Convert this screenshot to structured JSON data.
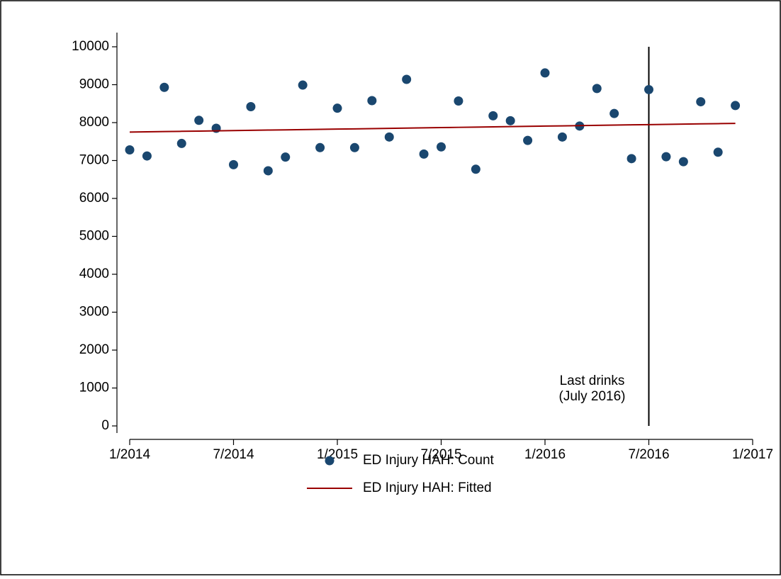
{
  "chart_data": {
    "type": "scatter",
    "x": [
      "1/2014",
      "2/2014",
      "3/2014",
      "4/2014",
      "5/2014",
      "6/2014",
      "7/2014",
      "8/2014",
      "9/2014",
      "10/2014",
      "11/2014",
      "12/2014",
      "1/2015",
      "2/2015",
      "3/2015",
      "4/2015",
      "5/2015",
      "6/2015",
      "7/2015",
      "8/2015",
      "9/2015",
      "10/2015",
      "11/2015",
      "12/2015",
      "1/2016",
      "2/2016",
      "3/2016",
      "4/2016",
      "5/2016",
      "6/2016",
      "7/2016",
      "8/2016",
      "9/2016",
      "10/2016",
      "11/2016",
      "12/2016"
    ],
    "series": [
      {
        "name": "ED Injury HAH: Count",
        "color": "#1a476f",
        "style": "markers",
        "values": [
          7280,
          7120,
          8930,
          7450,
          8060,
          7850,
          6890,
          8420,
          6730,
          7090,
          8990,
          7340,
          8380,
          7340,
          8580,
          7620,
          9140,
          7170,
          7360,
          8570,
          6770,
          8180,
          8050,
          7530,
          9310,
          7620,
          7910,
          8900,
          8240,
          7050,
          8870,
          7100,
          6970,
          8550,
          7220,
          8450
        ]
      },
      {
        "name": "ED Injury HAH: Fitted",
        "color": "#990000",
        "style": "line",
        "values": [
          7750,
          7757,
          7763,
          7770,
          7776,
          7783,
          7789,
          7796,
          7803,
          7809,
          7816,
          7822,
          7829,
          7835,
          7842,
          7849,
          7855,
          7862,
          7868,
          7875,
          7881,
          7888,
          7895,
          7901,
          7908,
          7914,
          7921,
          7927,
          7934,
          7941,
          7947,
          7954,
          7960,
          7967,
          7973,
          7980
        ]
      }
    ],
    "xlim": [
      "1/2014",
      "1/2017"
    ],
    "xticks": [
      "1/2014",
      "7/2014",
      "1/2015",
      "7/2015",
      "1/2016",
      "7/2016",
      "1/2017"
    ],
    "ylim": [
      0,
      10000
    ],
    "yticks": [
      0,
      1000,
      2000,
      3000,
      4000,
      5000,
      6000,
      7000,
      8000,
      9000,
      10000
    ],
    "annotation": {
      "x": "7/2016",
      "text": [
        "Last drinks",
        "(July 2016)"
      ]
    },
    "legend": "bottom"
  }
}
